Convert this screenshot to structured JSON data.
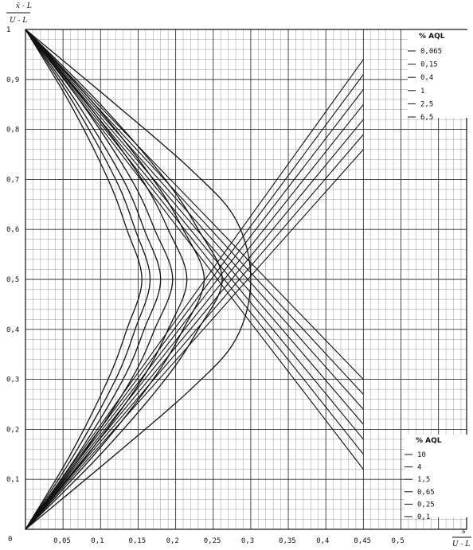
{
  "chart_data": {
    "type": "line",
    "title": "",
    "ylabel": {
      "numerator": "x̄ - L",
      "denominator": "U - L"
    },
    "xlabel": {
      "numerator": "s",
      "denominator": "U - L"
    },
    "xlim": [
      0,
      0.525
    ],
    "ylim": [
      0,
      1
    ],
    "x_ticks": [
      {
        "value": 0.05,
        "label": "0,05"
      },
      {
        "value": 0.1,
        "label": "0,1"
      },
      {
        "value": 0.15,
        "label": "0,15"
      },
      {
        "value": 0.2,
        "label": "0,2"
      },
      {
        "value": 0.25,
        "label": "0,25"
      },
      {
        "value": 0.3,
        "label": "0,3"
      },
      {
        "value": 0.35,
        "label": "0,35"
      },
      {
        "value": 0.4,
        "label": "0,4"
      },
      {
        "value": 0.45,
        "label": "0,45"
      },
      {
        "value": 0.5,
        "label": "0,5"
      }
    ],
    "x_origin_label": "0",
    "y_ticks": [
      {
        "value": 0.1,
        "label": "0,1"
      },
      {
        "value": 0.2,
        "label": "0,2"
      },
      {
        "value": 0.3,
        "label": "0,3"
      },
      {
        "value": 0.4,
        "label": "0,4"
      },
      {
        "value": 0.5,
        "label": "0,5"
      },
      {
        "value": 0.6,
        "label": "0,6"
      },
      {
        "value": 0.7,
        "label": "0,7"
      },
      {
        "value": 0.8,
        "label": "0,8"
      },
      {
        "value": 0.9,
        "label": "0,9"
      },
      {
        "value": 1,
        "label": "1"
      }
    ],
    "grid": true,
    "top_legend": {
      "title": "% AQL",
      "position": "top-right",
      "entries": [
        "0,065",
        "0,15",
        "0,4",
        "1",
        "2,5",
        "6,5"
      ]
    },
    "bottom_legend": {
      "title": "% AQL",
      "position": "bottom-right",
      "entries": [
        "10",
        "4",
        "1,5",
        "0,65",
        "0,25",
        "0,1"
      ]
    },
    "descending_lines": [
      {
        "name": "0,065",
        "points": [
          [
            0,
            1
          ],
          [
            0.45,
            0.12
          ]
        ]
      },
      {
        "name": "0,15",
        "points": [
          [
            0,
            1
          ],
          [
            0.45,
            0.15
          ]
        ]
      },
      {
        "name": "0,4",
        "points": [
          [
            0,
            1
          ],
          [
            0.45,
            0.18
          ]
        ]
      },
      {
        "name": "1",
        "points": [
          [
            0,
            1
          ],
          [
            0.45,
            0.21
          ]
        ]
      },
      {
        "name": "2,5",
        "points": [
          [
            0,
            1
          ],
          [
            0.45,
            0.24
          ]
        ]
      },
      {
        "name": "6,5",
        "points": [
          [
            0,
            1
          ],
          [
            0.45,
            0.27
          ]
        ]
      },
      {
        "name": "10",
        "points": [
          [
            0,
            1
          ],
          [
            0.45,
            0.3
          ]
        ]
      }
    ],
    "ascending_lines": [
      {
        "name": "0,065",
        "points": [
          [
            0,
            0
          ],
          [
            0.45,
            0.94
          ]
        ]
      },
      {
        "name": "0,15",
        "points": [
          [
            0,
            0
          ],
          [
            0.45,
            0.91
          ]
        ]
      },
      {
        "name": "0,4",
        "points": [
          [
            0,
            0
          ],
          [
            0.45,
            0.88
          ]
        ]
      },
      {
        "name": "1",
        "points": [
          [
            0,
            0
          ],
          [
            0.45,
            0.85
          ]
        ]
      },
      {
        "name": "2,5",
        "points": [
          [
            0,
            0
          ],
          [
            0.45,
            0.82
          ]
        ]
      },
      {
        "name": "6,5",
        "points": [
          [
            0,
            0
          ],
          [
            0.45,
            0.79
          ]
        ]
      },
      {
        "name": "10",
        "points": [
          [
            0,
            0
          ],
          [
            0.45,
            0.76
          ]
        ]
      }
    ],
    "series": [
      {
        "name": "0,065",
        "points": [
          [
            0,
            1
          ],
          [
            0.06,
            0.85
          ],
          [
            0.11,
            0.7
          ],
          [
            0.135,
            0.6
          ],
          [
            0.155,
            0.5
          ],
          [
            0.135,
            0.4
          ],
          [
            0.11,
            0.3
          ],
          [
            0.06,
            0.15
          ],
          [
            0,
            0
          ]
        ]
      },
      {
        "name": "0,15",
        "points": [
          [
            0,
            1
          ],
          [
            0.065,
            0.85
          ],
          [
            0.12,
            0.7
          ],
          [
            0.146,
            0.6
          ],
          [
            0.166,
            0.5
          ],
          [
            0.146,
            0.4
          ],
          [
            0.12,
            0.3
          ],
          [
            0.065,
            0.15
          ],
          [
            0,
            0
          ]
        ]
      },
      {
        "name": "0,4",
        "points": [
          [
            0,
            1
          ],
          [
            0.07,
            0.85
          ],
          [
            0.13,
            0.7
          ],
          [
            0.158,
            0.6
          ],
          [
            0.18,
            0.5
          ],
          [
            0.158,
            0.4
          ],
          [
            0.13,
            0.3
          ],
          [
            0.07,
            0.15
          ],
          [
            0,
            0
          ]
        ]
      },
      {
        "name": "1",
        "points": [
          [
            0,
            1
          ],
          [
            0.076,
            0.85
          ],
          [
            0.141,
            0.7
          ],
          [
            0.172,
            0.6
          ],
          [
            0.196,
            0.5
          ],
          [
            0.172,
            0.4
          ],
          [
            0.141,
            0.3
          ],
          [
            0.076,
            0.15
          ],
          [
            0,
            0
          ]
        ]
      },
      {
        "name": "2,5",
        "points": [
          [
            0,
            1
          ],
          [
            0.083,
            0.85
          ],
          [
            0.155,
            0.7
          ],
          [
            0.19,
            0.6
          ],
          [
            0.215,
            0.5
          ],
          [
            0.19,
            0.4
          ],
          [
            0.155,
            0.3
          ],
          [
            0.083,
            0.15
          ],
          [
            0,
            0
          ]
        ]
      },
      {
        "name": "6,5",
        "points": [
          [
            0,
            1
          ],
          [
            0.092,
            0.85
          ],
          [
            0.17,
            0.7
          ],
          [
            0.21,
            0.6
          ],
          [
            0.238,
            0.5
          ],
          [
            0.21,
            0.4
          ],
          [
            0.17,
            0.3
          ],
          [
            0.092,
            0.15
          ],
          [
            0,
            0
          ]
        ]
      },
      {
        "name": "10",
        "points": [
          [
            0,
            1
          ],
          [
            0.1,
            0.85
          ],
          [
            0.186,
            0.7
          ],
          [
            0.23,
            0.6
          ],
          [
            0.262,
            0.5
          ],
          [
            0.23,
            0.4
          ],
          [
            0.186,
            0.3
          ],
          [
            0.1,
            0.15
          ],
          [
            0,
            0
          ]
        ]
      },
      {
        "name": "outer",
        "points": [
          [
            0,
            1
          ],
          [
            0.12,
            0.85
          ],
          [
            0.22,
            0.72
          ],
          [
            0.28,
            0.62
          ],
          [
            0.3,
            0.5
          ],
          [
            0.28,
            0.38
          ],
          [
            0.22,
            0.28
          ],
          [
            0.12,
            0.15
          ],
          [
            0,
            0
          ]
        ]
      }
    ]
  }
}
